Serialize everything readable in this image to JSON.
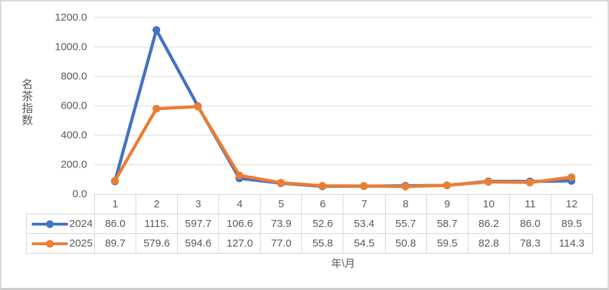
{
  "chart_data": {
    "type": "line",
    "title": "",
    "ylabel": "名茶指数",
    "xlabel": "年\\月",
    "ylim": [
      0,
      1200
    ],
    "grid": true,
    "legend_position": "table-left",
    "y_ticks": {
      "values": [
        0,
        200,
        400,
        600,
        800,
        1000,
        1200
      ],
      "labels": [
        "0.0",
        "200.0",
        "400.0",
        "600.0",
        "800.0",
        "1000.0",
        "1200.0"
      ]
    },
    "categories": [
      "1",
      "2",
      "3",
      "4",
      "5",
      "6",
      "7",
      "8",
      "9",
      "10",
      "11",
      "12"
    ],
    "series": [
      {
        "name": "2024",
        "color": "#4472C4",
        "values": [
          86.0,
          1115.0,
          597.7,
          106.6,
          73.9,
          52.6,
          53.4,
          55.7,
          58.7,
          86.2,
          86.0,
          89.5
        ],
        "display": [
          "86.0",
          "1115.",
          "597.7",
          "106.6",
          "73.9",
          "52.6",
          "53.4",
          "55.7",
          "58.7",
          "86.2",
          "86.0",
          "89.5"
        ]
      },
      {
        "name": "2025",
        "color": "#ED7D31",
        "values": [
          89.7,
          579.6,
          594.6,
          127.0,
          77.0,
          55.8,
          54.5,
          50.8,
          59.5,
          82.8,
          78.3,
          114.3
        ],
        "display": [
          "89.7",
          "579.6",
          "594.6",
          "127.0",
          "77.0",
          "55.8",
          "54.5",
          "50.8",
          "59.5",
          "82.8",
          "78.3",
          "114.3"
        ]
      }
    ],
    "colors": {
      "gridline": "#d9d9d9",
      "table_border": "#d6d6d6",
      "text": "#595959"
    }
  }
}
